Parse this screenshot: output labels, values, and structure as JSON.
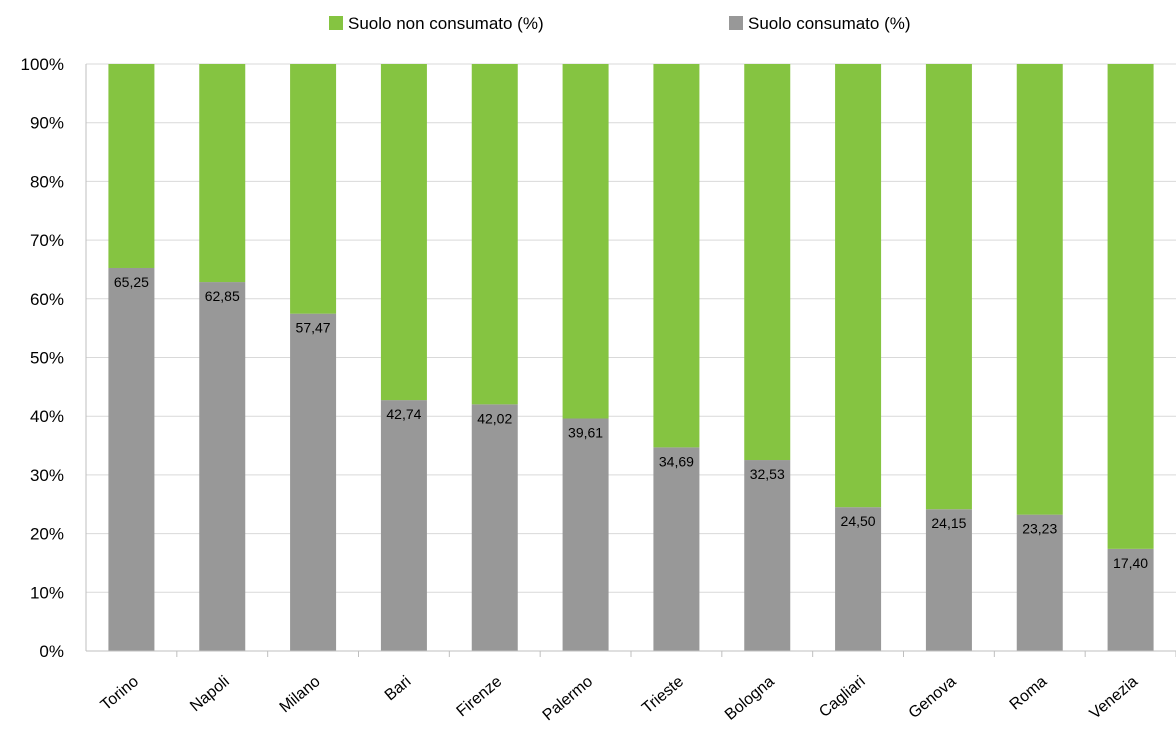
{
  "chart_data": {
    "type": "bar",
    "stacked": true,
    "percent_stacked": true,
    "categories": [
      "Torino",
      "Napoli",
      "Milano",
      "Bari",
      "Firenze",
      "Palermo",
      "Trieste",
      "Bologna",
      "Cagliari",
      "Genova",
      "Roma",
      "Venezia"
    ],
    "series": [
      {
        "name": "Suolo non consumato (%)",
        "color": "#85c441",
        "values": [
          34.75,
          37.15,
          42.53,
          57.26,
          57.98,
          60.39,
          65.31,
          67.47,
          75.5,
          75.85,
          76.77,
          82.6
        ]
      },
      {
        "name": "Suolo consumato (%)",
        "color": "#989898",
        "values": [
          65.25,
          62.85,
          57.47,
          42.74,
          42.02,
          39.61,
          34.69,
          32.53,
          24.5,
          24.15,
          23.23,
          17.4
        ]
      }
    ],
    "data_labels": [
      "65,25",
      "62,85",
      "57,47",
      "42,74",
      "42,02",
      "39,61",
      "34,69",
      "32,53",
      "24,50",
      "24,15",
      "23,23",
      "17,40"
    ],
    "y_ticks": [
      "0%",
      "10%",
      "20%",
      "30%",
      "40%",
      "50%",
      "60%",
      "70%",
      "80%",
      "90%",
      "100%"
    ],
    "ylim": [
      0,
      100
    ],
    "grid": true,
    "legend_position": "top-center",
    "x_tick_rotation": "diagonal"
  }
}
